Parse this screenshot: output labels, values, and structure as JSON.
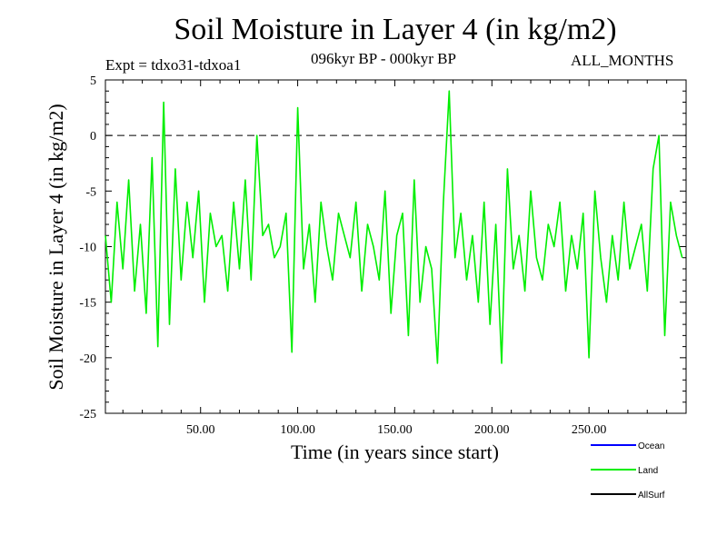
{
  "chart_data": {
    "type": "line",
    "title": "Soil Moisture in Layer 4 (in kg/m2)",
    "subtitle_left": "Expt = tdxo31-tdxoa1",
    "subtitle_center": "096kyr BP - 000kyr BP",
    "subtitle_right": "ALL_MONTHS",
    "xlabel": "Time (in years since start)",
    "ylabel": "Soil Moisture in Layer 4 (in kg/m2)",
    "xlim": [
      1,
      300
    ],
    "ylim": [
      -25,
      5
    ],
    "x_ticks": [
      50,
      100,
      150,
      200,
      250
    ],
    "x_tick_labels": [
      "50.00",
      "100.00",
      "150.00",
      "200.00",
      "250.00"
    ],
    "y_ticks": [
      5,
      0,
      -5,
      -10,
      -15,
      -20,
      -25
    ],
    "y_tick_labels": [
      "5",
      "0",
      "-5",
      "-10",
      "-15",
      "-20",
      "-25"
    ],
    "reference_line": {
      "y": 0,
      "style": "dashed"
    },
    "legend": [
      {
        "name": "Ocean",
        "color": "#0000ff"
      },
      {
        "name": "Land",
        "color": "#00ee00"
      },
      {
        "name": "AllSurf",
        "color": "#000000"
      }
    ],
    "series": [
      {
        "name": "Land",
        "color": "#00ee00",
        "x": [
          1,
          4,
          7,
          10,
          13,
          16,
          19,
          22,
          25,
          28,
          31,
          34,
          37,
          40,
          43,
          46,
          49,
          52,
          55,
          58,
          61,
          64,
          67,
          70,
          73,
          76,
          79,
          82,
          85,
          88,
          91,
          94,
          97,
          100,
          103,
          106,
          109,
          112,
          115,
          118,
          121,
          124,
          127,
          130,
          133,
          136,
          139,
          142,
          145,
          148,
          151,
          154,
          157,
          160,
          163,
          166,
          169,
          172,
          175,
          178,
          181,
          184,
          187,
          190,
          193,
          196,
          199,
          202,
          205,
          208,
          211,
          214,
          217,
          220,
          223,
          226,
          229,
          232,
          235,
          238,
          241,
          244,
          247,
          250,
          253,
          256,
          259,
          262,
          265,
          268,
          271,
          274,
          277,
          280,
          283,
          286,
          289,
          292,
          295,
          298
        ],
        "values": [
          -9,
          -15,
          -6,
          -12,
          -4,
          -14,
          -8,
          -16,
          -2,
          -19,
          3,
          -17,
          -3,
          -13,
          -6,
          -11,
          -5,
          -15,
          -7,
          -10,
          -9,
          -14,
          -6,
          -12,
          -4,
          -13,
          0,
          -9,
          -8,
          -11,
          -10,
          -7,
          -19.5,
          2.5,
          -12,
          -8,
          -15,
          -6,
          -10,
          -13,
          -7,
          -9,
          -11,
          -6,
          -14,
          -8,
          -10,
          -13,
          -5,
          -16,
          -9,
          -7,
          -18,
          -4,
          -15,
          -10,
          -12,
          -20.5,
          -6,
          4,
          -11,
          -7,
          -13,
          -9,
          -15,
          -6,
          -17,
          -8,
          -20.5,
          -3,
          -12,
          -9,
          -14,
          -5,
          -11,
          -13,
          -8,
          -10,
          -6,
          -14,
          -9,
          -12,
          -7,
          -20,
          -5,
          -11,
          -15,
          -9,
          -13,
          -6,
          -12,
          -10,
          -8,
          -14,
          -3,
          0,
          -18,
          -6,
          -9,
          -11
        ]
      }
    ]
  }
}
